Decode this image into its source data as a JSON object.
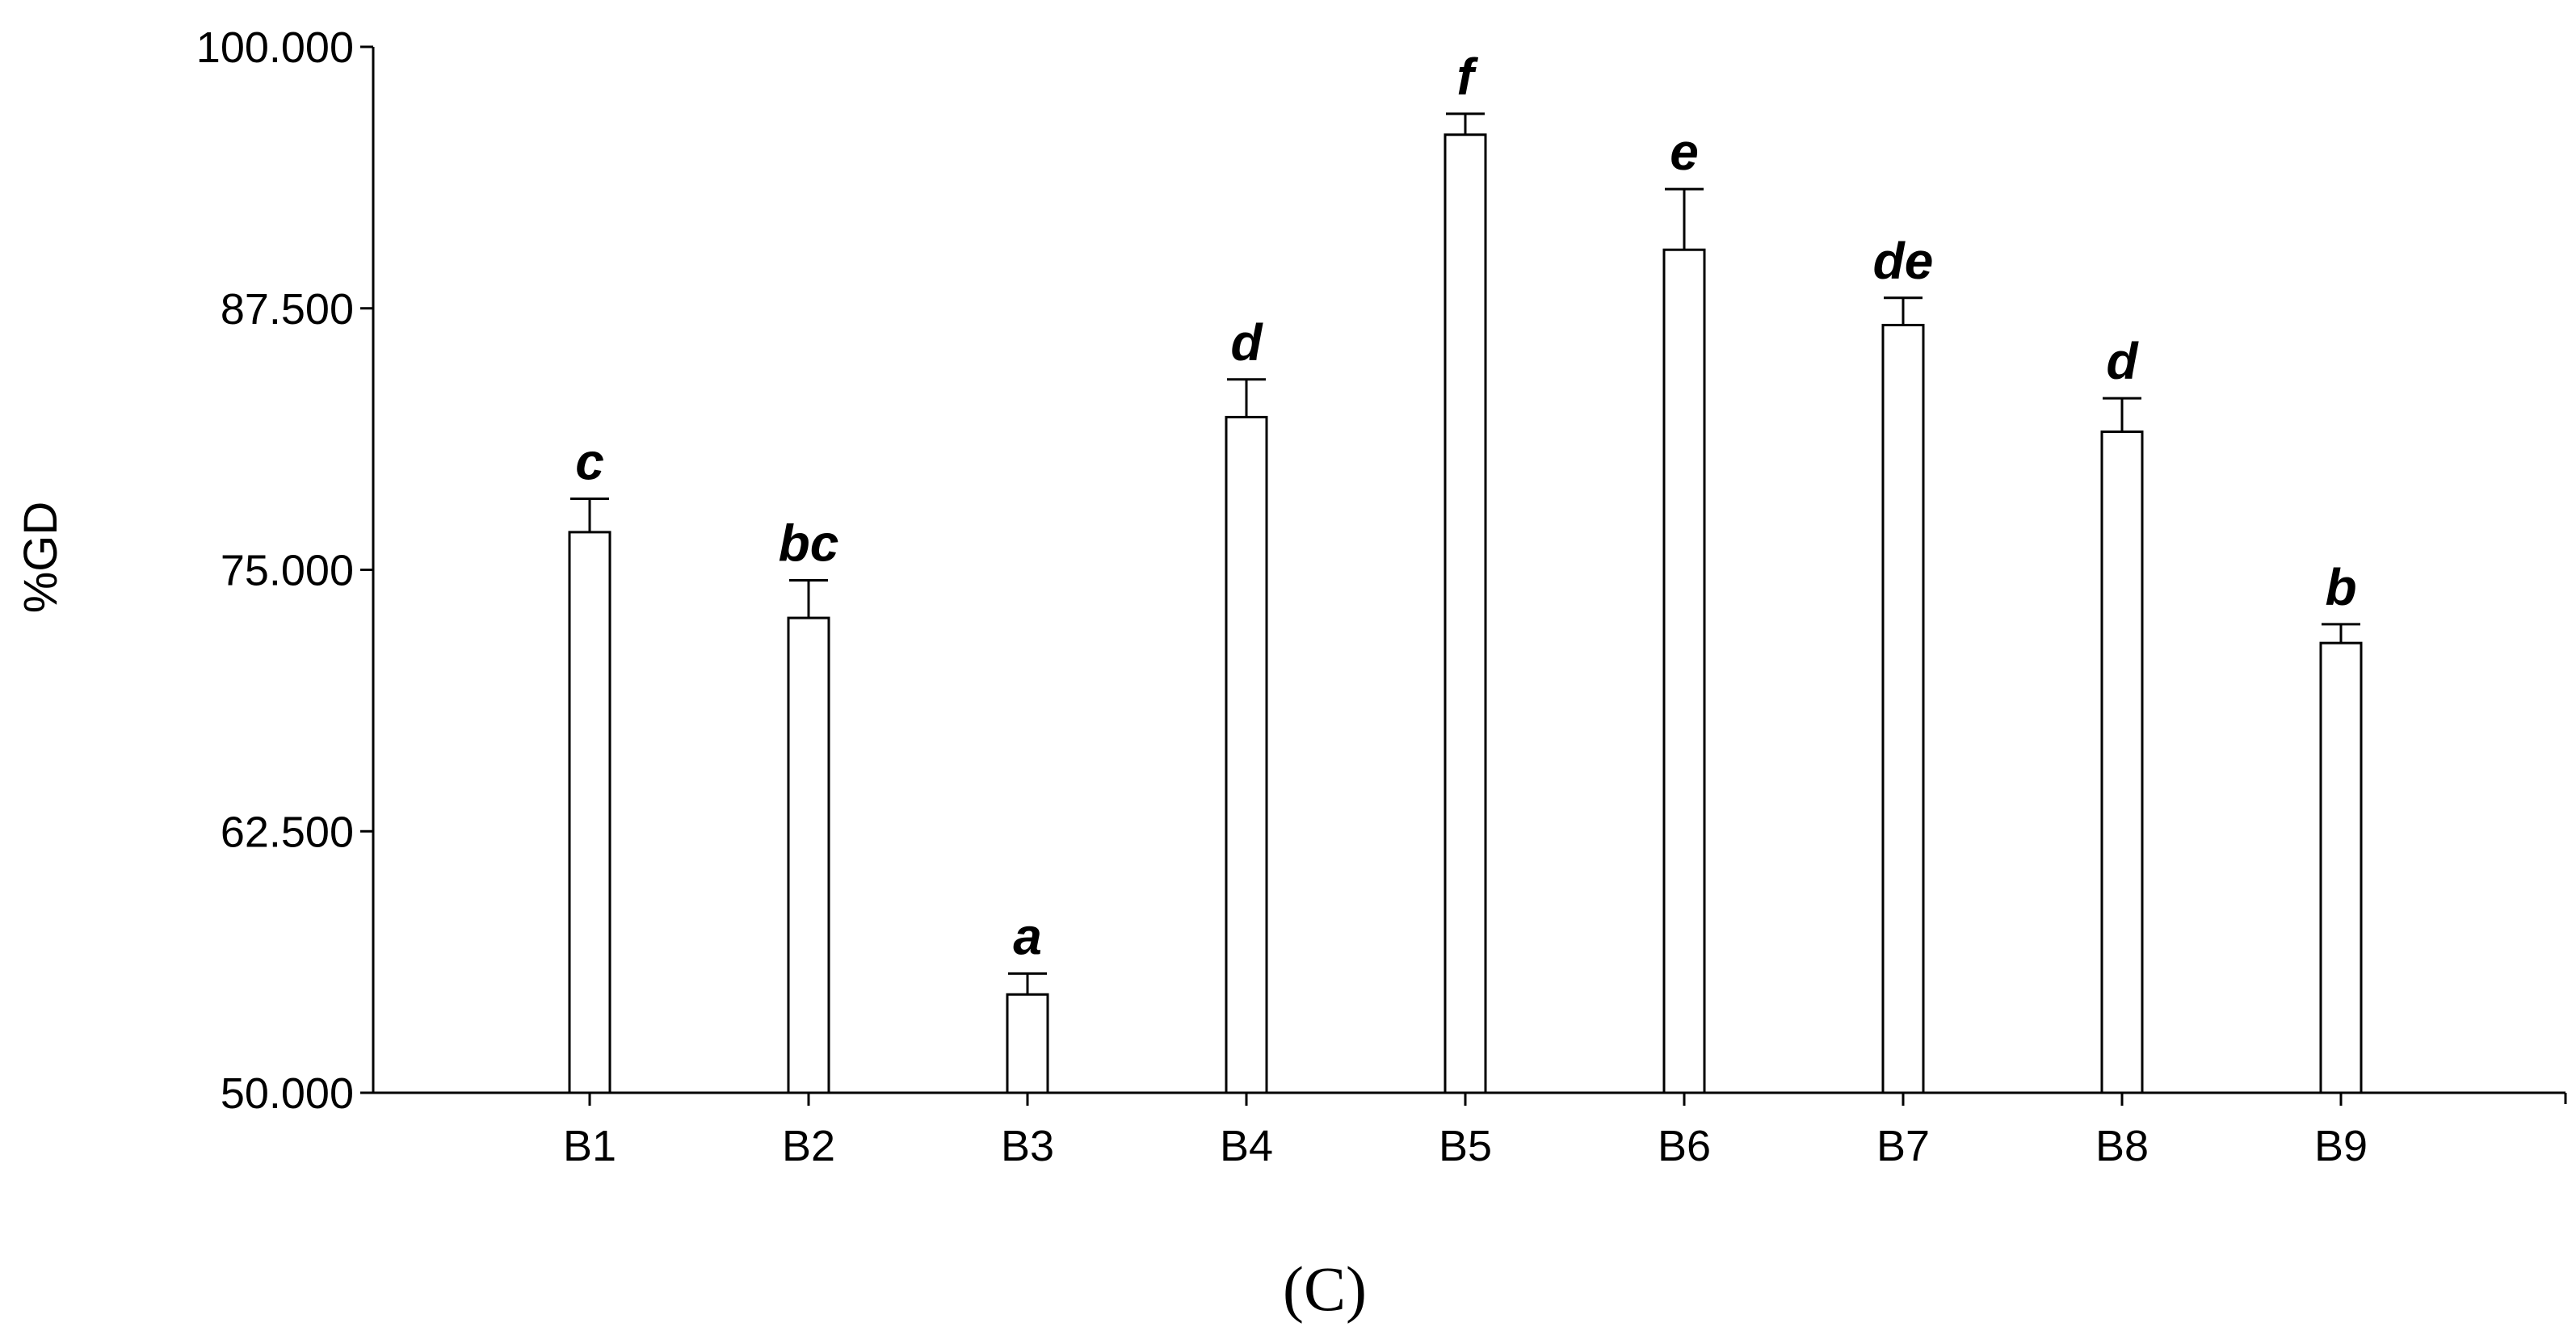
{
  "chart_data": {
    "type": "bar",
    "title": "",
    "xlabel": "",
    "ylabel": "%GD",
    "ylim": [
      50,
      100
    ],
    "yticks": [
      "50.000",
      "62.500",
      "75.000",
      "87.500",
      "100.000"
    ],
    "ytick_values": [
      50,
      62.5,
      75,
      87.5,
      100
    ],
    "categories": [
      "B1",
      "B2",
      "B3",
      "B4",
      "B5",
      "B6",
      "B7",
      "B8",
      "B9"
    ],
    "values": [
      76.8,
      72.7,
      54.7,
      82.3,
      95.8,
      90.3,
      86.7,
      81.6,
      71.5
    ],
    "errors": [
      1.6,
      1.8,
      1.0,
      1.8,
      1.0,
      2.9,
      1.3,
      1.6,
      0.9
    ],
    "significance_letters": [
      "c",
      "bc",
      "a",
      "d",
      "f",
      "e",
      "de",
      "d",
      "b"
    ],
    "bar_color": "#ffffff",
    "edge_color": "#000000",
    "grid": false,
    "panel_label": "(C)"
  }
}
